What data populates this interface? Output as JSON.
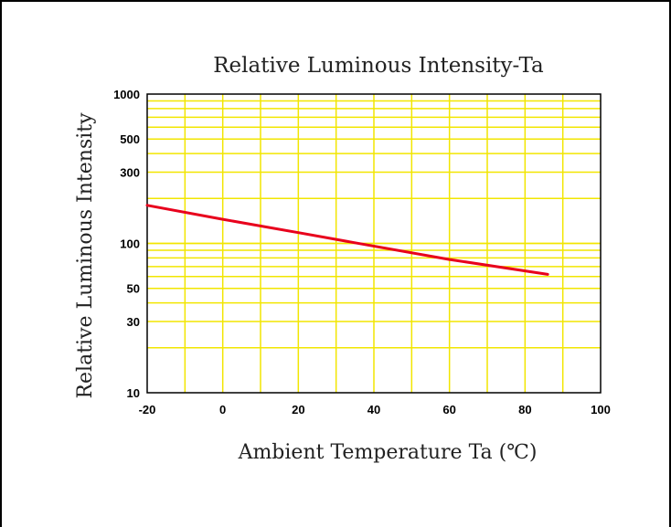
{
  "chart_data": {
    "type": "line",
    "title": "Relative Luminous Intensity-Ta",
    "xlabel": "Ambient Temperature Ta (℃)",
    "ylabel": "Relative Luminous Intensity",
    "xlim": [
      -20,
      100
    ],
    "ylim": [
      10,
      1000
    ],
    "yscale": "log",
    "grid": true,
    "x_ticks": [
      -20,
      0,
      20,
      40,
      60,
      80,
      100
    ],
    "x_tick_labels": [
      "-20",
      "0",
      "20",
      "40",
      "60",
      "80",
      "100"
    ],
    "y_ticks": [
      10,
      30,
      50,
      100,
      300,
      500,
      1000
    ],
    "y_tick_labels": [
      "10",
      "30",
      "50",
      "100",
      "300",
      "500",
      "1000"
    ],
    "series": [
      {
        "color": "#e8001c",
        "x": [
          -20,
          0,
          20,
          35,
          60,
          86
        ],
        "y": [
          180,
          145,
          118,
          101,
          78,
          62
        ]
      }
    ]
  },
  "colors": {
    "grid": "#f2e600",
    "line": "#e8001c",
    "axis": "#000000"
  }
}
